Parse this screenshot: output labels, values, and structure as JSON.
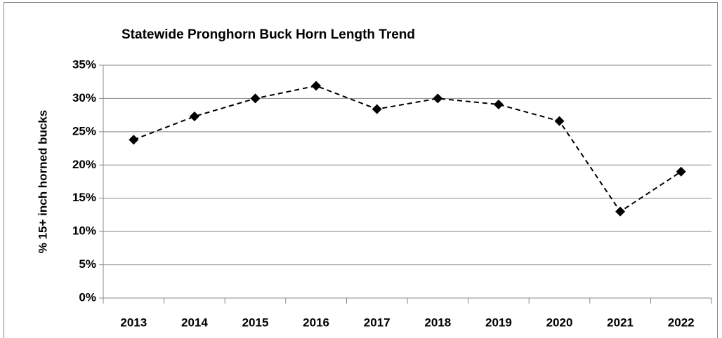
{
  "chart_data": {
    "type": "line",
    "title": "Statewide Pronghorn Buck Horn Length Trend",
    "y_label": "% 15+ inch horned bucks",
    "categories": [
      "2013",
      "2014",
      "2015",
      "2016",
      "2017",
      "2018",
      "2019",
      "2020",
      "2021",
      "2022"
    ],
    "series": [
      {
        "name": "% 15+ inch horned bucks",
        "color": "#000000",
        "values": [
          23.8,
          27.3,
          30.0,
          31.9,
          28.4,
          30.0,
          29.1,
          26.6,
          13.0,
          19.0
        ]
      }
    ],
    "ylim": [
      0,
      35
    ],
    "yticks": [
      {
        "value": 0,
        "label": "0%"
      },
      {
        "value": 5,
        "label": "5%"
      },
      {
        "value": 10,
        "label": "10%"
      },
      {
        "value": 15,
        "label": "15%"
      },
      {
        "value": 20,
        "label": "20%"
      },
      {
        "value": 25,
        "label": "25%"
      },
      {
        "value": 30,
        "label": "30%"
      },
      {
        "value": 35,
        "label": "35%"
      }
    ],
    "grid": true
  }
}
